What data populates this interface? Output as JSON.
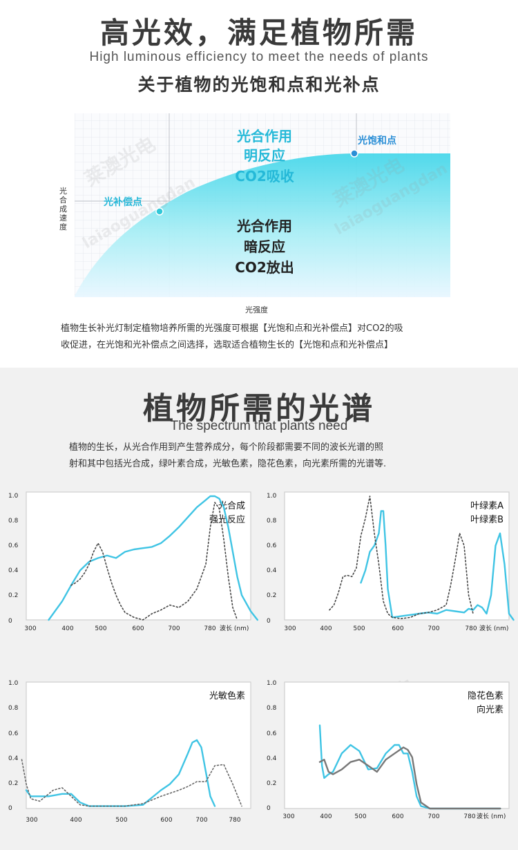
{
  "header": {
    "title": "高光效，满足植物所需",
    "subtitle_en": "High luminous efficiency to meet the needs of plants",
    "section_title": "关于植物的光饱和点和光补点"
  },
  "saturation_chart": {
    "ylabel": "光合成速度",
    "xlabel": "光强度",
    "upper_region_label": [
      "光合作用",
      "明反应",
      "CO2吸收"
    ],
    "lower_region_label": [
      "光合作用",
      "暗反应",
      "CO2放出"
    ],
    "compensation_point_label": "光补偿点",
    "saturation_point_label": "光饱和点",
    "accent_color": "#32c8d8",
    "label_color": "#28b8d8",
    "saturation_dot_color": "#2b8fd6"
  },
  "paragraph1": [
    "植物生长补光灯制定植物培养所需的光强度可根据【光饱和点和光补偿点】对CO2的吸",
    "收促进，在光饱和光补偿点之间选择，选取适合植物生长的【光饱和点和光补偿点】"
  ],
  "spectrum_section": {
    "title": "植物所需的光谱",
    "subtitle_en": "The spectrum that plants need",
    "paragraph": [
      "植物的生长，从光合作用到产生营养成分，每个阶段都需要不同的波长光谱的照",
      "射和其中包括光合成，绿叶素合成，光敏色素，隐花色素，向光素所需的光谱等."
    ]
  },
  "watermark": {
    "cn": "莱澳光电",
    "en": "laiaoguangdan"
  },
  "chart_data": [
    {
      "type": "line",
      "title": "",
      "legend": [
        "光合成",
        "强光反应"
      ],
      "xlabel": "波长 (nm)",
      "x_ticks": [
        "300",
        "400",
        "500",
        "600",
        "700",
        "780"
      ],
      "y_ticks": [
        "1.0",
        "0.8",
        "0.6",
        "0.4",
        "0.2",
        "0"
      ],
      "xlim": [
        300,
        800
      ],
      "ylim": [
        0,
        1.0
      ],
      "series": [
        {
          "color": "#3fc4e4",
          "style": "solid",
          "x": [
            350,
            380,
            400,
            420,
            440,
            460,
            480,
            500,
            520,
            540,
            560,
            580,
            600,
            620,
            640,
            660,
            680,
            700,
            710,
            720,
            730,
            740,
            750,
            760,
            770,
            780,
            800,
            815
          ],
          "y": [
            0,
            0.15,
            0.28,
            0.4,
            0.47,
            0.5,
            0.52,
            0.5,
            0.55,
            0.57,
            0.58,
            0.59,
            0.62,
            0.68,
            0.75,
            0.83,
            0.91,
            0.97,
            1.0,
            1.0,
            0.98,
            0.91,
            0.75,
            0.55,
            0.35,
            0.2,
            0.07,
            0.0
          ]
        },
        {
          "color": "#444444",
          "style": "dotted",
          "x": [
            400,
            410,
            420,
            430,
            440,
            450,
            460,
            470,
            480,
            490,
            500,
            510,
            520,
            540,
            560,
            580,
            600,
            620,
            640,
            660,
            680,
            700,
            710,
            720,
            730,
            740,
            750,
            760,
            770
          ],
          "y": [
            0.28,
            0.3,
            0.33,
            0.38,
            0.45,
            0.55,
            0.62,
            0.55,
            0.42,
            0.3,
            0.2,
            0.12,
            0.06,
            0.02,
            0.0,
            0.05,
            0.08,
            0.12,
            0.1,
            0.15,
            0.25,
            0.45,
            0.75,
            0.95,
            0.9,
            0.65,
            0.35,
            0.1,
            0.0
          ]
        }
      ]
    },
    {
      "type": "line",
      "title": "",
      "legend": [
        "叶绿素A",
        "叶绿素B"
      ],
      "xlabel": "波长 (nm)",
      "x_ticks": [
        "300",
        "400",
        "500",
        "600",
        "700",
        "780"
      ],
      "y_ticks": [
        "1.0",
        "0.8",
        "0.6",
        "0.4",
        "0.2",
        "0"
      ],
      "xlim": [
        300,
        800
      ],
      "ylim": [
        0,
        1.0
      ],
      "series": [
        {
          "color": "#3fc4e4",
          "style": "solid",
          "x": [
            470,
            480,
            490,
            500,
            510,
            515,
            520,
            525,
            530,
            540,
            560,
            580,
            600,
            620,
            640,
            660,
            680,
            700,
            710,
            720,
            730,
            740,
            750,
            760,
            770,
            780,
            790,
            800,
            810
          ],
          "y": [
            0.3,
            0.4,
            0.55,
            0.6,
            0.7,
            0.88,
            0.88,
            0.6,
            0.25,
            0.02,
            0.03,
            0.04,
            0.05,
            0.06,
            0.05,
            0.08,
            0.07,
            0.06,
            0.09,
            0.08,
            0.12,
            0.1,
            0.05,
            0.2,
            0.6,
            0.7,
            0.45,
            0.05,
            0.0
          ]
        },
        {
          "color": "#444444",
          "style": "dotted",
          "x": [
            400,
            410,
            420,
            430,
            440,
            450,
            460,
            470,
            480,
            490,
            500,
            510,
            520,
            530,
            540,
            560,
            580,
            600,
            620,
            640,
            660,
            670,
            680,
            690,
            700,
            710,
            720
          ],
          "y": [
            0.08,
            0.12,
            0.22,
            0.35,
            0.36,
            0.35,
            0.42,
            0.68,
            0.82,
            1.0,
            0.7,
            0.45,
            0.15,
            0.05,
            0.02,
            0.01,
            0.02,
            0.05,
            0.06,
            0.08,
            0.12,
            0.28,
            0.48,
            0.7,
            0.6,
            0.2,
            0.05
          ]
        }
      ]
    },
    {
      "type": "line",
      "title": "",
      "legend": [
        "光敏色素"
      ],
      "xlabel": "",
      "x_ticks": [
        "300",
        "400",
        "500",
        "600",
        "700",
        "780"
      ],
      "y_ticks": [
        "1.0",
        "0.8",
        "0.6",
        "0.4",
        "0.2",
        "0"
      ],
      "xlim": [
        300,
        800
      ],
      "ylim": [
        0,
        1.0
      ],
      "series": [
        {
          "color": "#3fc4e4",
          "style": "solid",
          "x": [
            300,
            310,
            330,
            350,
            380,
            400,
            420,
            440,
            480,
            520,
            560,
            600,
            620,
            640,
            660,
            670,
            680,
            690,
            700,
            710,
            720
          ],
          "y": [
            0.15,
            0.1,
            0.1,
            0.1,
            0.12,
            0.12,
            0.05,
            0.02,
            0.02,
            0.02,
            0.03,
            0.15,
            0.2,
            0.28,
            0.45,
            0.54,
            0.56,
            0.5,
            0.3,
            0.1,
            0.02
          ]
        },
        {
          "color": "#666666",
          "style": "dotted",
          "x": [
            290,
            300,
            310,
            330,
            360,
            380,
            400,
            420,
            440,
            480,
            520,
            560,
            600,
            640,
            660,
            680,
            700,
            720,
            740,
            760,
            780
          ],
          "y": [
            0.4,
            0.2,
            0.08,
            0.06,
            0.15,
            0.17,
            0.1,
            0.03,
            0.02,
            0.02,
            0.02,
            0.04,
            0.1,
            0.15,
            0.18,
            0.22,
            0.22,
            0.35,
            0.36,
            0.2,
            0.02
          ]
        }
      ]
    },
    {
      "type": "line",
      "title": "",
      "legend": [
        "隐花色素",
        "向光素"
      ],
      "xlabel": "波长 (nm)",
      "x_ticks": [
        "300",
        "400",
        "500",
        "600",
        "700",
        "780"
      ],
      "y_ticks": [
        "1.0",
        "0.8",
        "0.6",
        "0.4",
        "0.2",
        "0"
      ],
      "xlim": [
        290,
        800
      ],
      "ylim": [
        0,
        1.0
      ],
      "series": [
        {
          "color": "#3fc4e4",
          "style": "solid",
          "x": [
            370,
            375,
            380,
            390,
            400,
            420,
            440,
            460,
            480,
            500,
            520,
            540,
            550,
            560,
            570,
            580,
            590,
            600,
            620,
            700,
            780
          ],
          "y": [
            0.68,
            0.35,
            0.25,
            0.28,
            0.3,
            0.45,
            0.52,
            0.47,
            0.32,
            0.33,
            0.45,
            0.52,
            0.52,
            0.45,
            0.45,
            0.3,
            0.1,
            0.02,
            0.0,
            0.0,
            0.0
          ]
        },
        {
          "color": "#777777",
          "style": "solid",
          "x": [
            370,
            380,
            390,
            400,
            420,
            440,
            460,
            480,
            500,
            520,
            540,
            560,
            570,
            580,
            590,
            600,
            620,
            700,
            780
          ],
          "y": [
            0.38,
            0.4,
            0.3,
            0.28,
            0.32,
            0.38,
            0.4,
            0.35,
            0.3,
            0.4,
            0.45,
            0.5,
            0.48,
            0.42,
            0.2,
            0.05,
            0.0,
            0.0,
            0.0
          ]
        }
      ]
    }
  ]
}
